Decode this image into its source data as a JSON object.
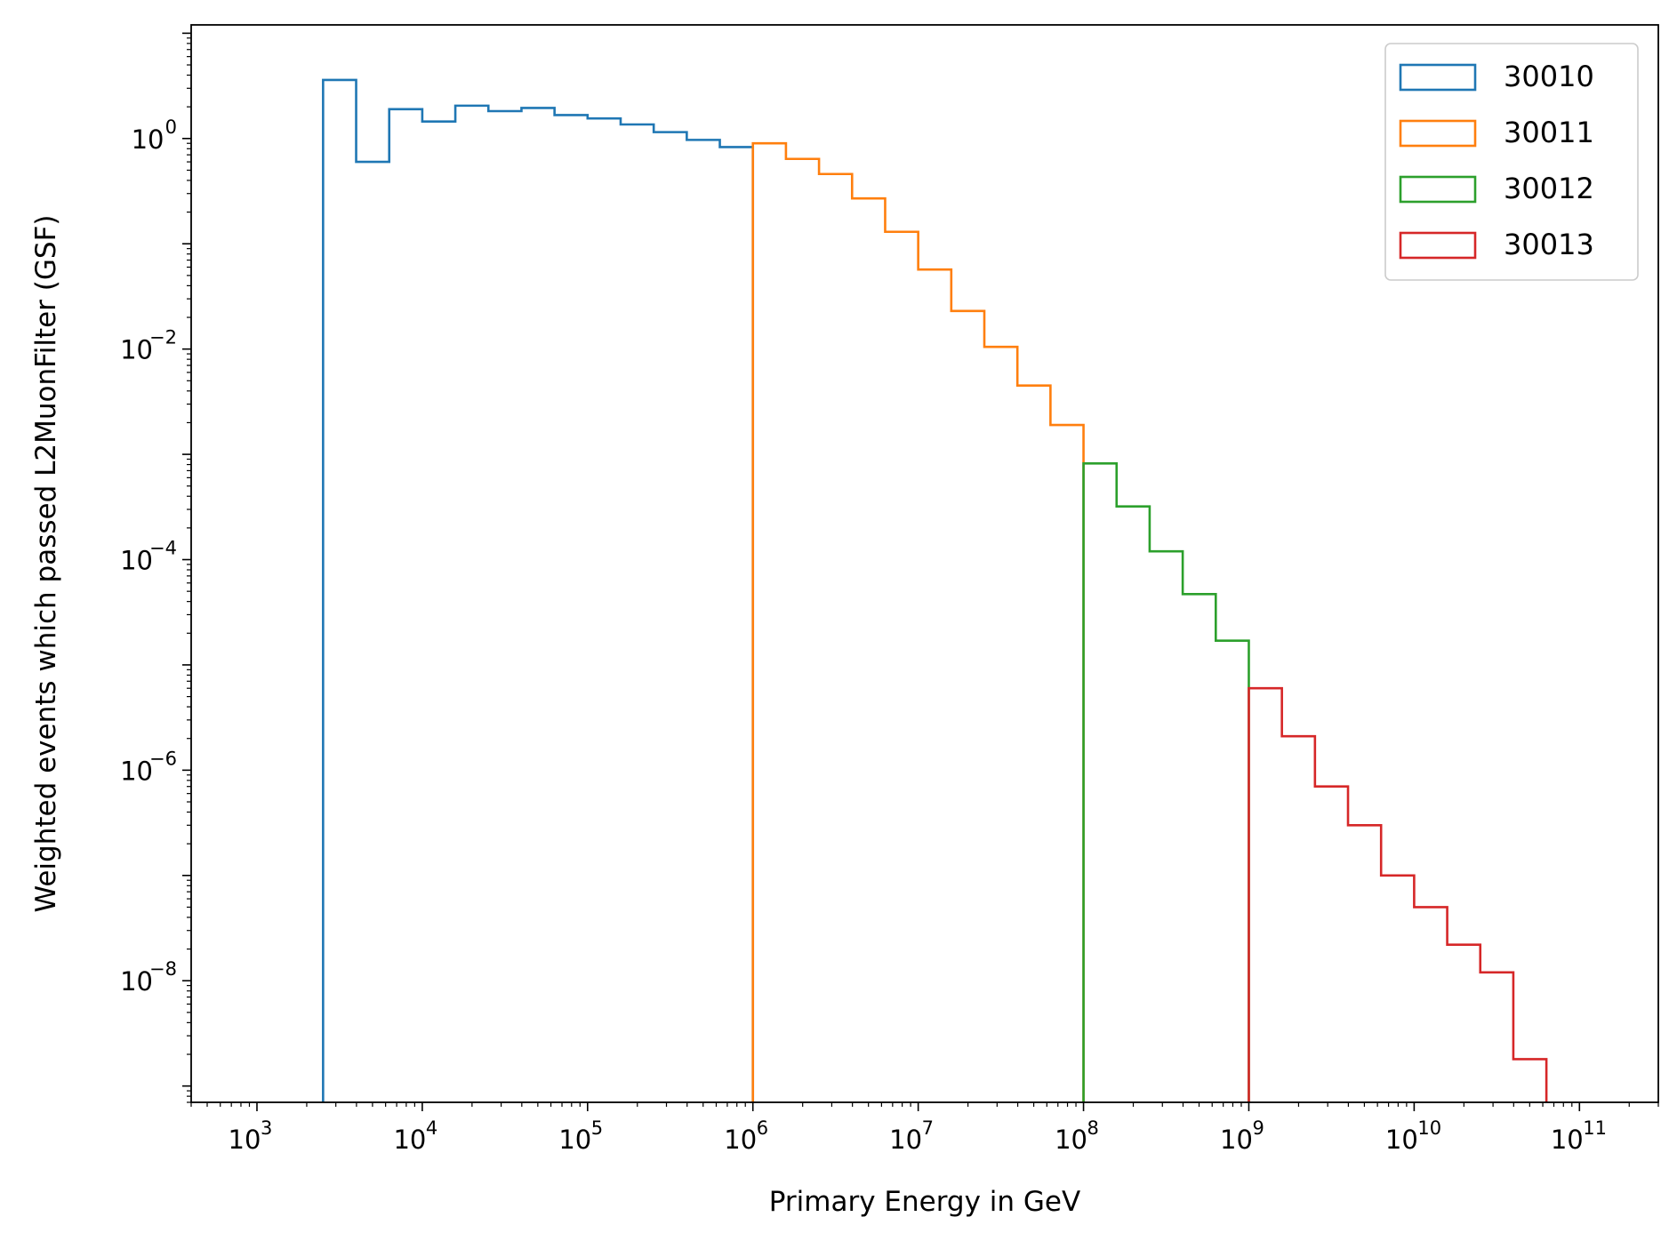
{
  "chart_data": {
    "type": "histogram-step",
    "xlabel": "Primary Energy in GeV",
    "ylabel": "Weighted events which passed L2MuonFilter (GSF)",
    "xscale": "log",
    "yscale": "log",
    "xlim": [
      400,
      300000000000.0
    ],
    "ylim": [
      7e-10,
      12
    ],
    "x_ticks": [
      {
        "base": "10",
        "exp": "3",
        "value": 1000.0
      },
      {
        "base": "10",
        "exp": "4",
        "value": 10000.0
      },
      {
        "base": "10",
        "exp": "5",
        "value": 100000.0
      },
      {
        "base": "10",
        "exp": "6",
        "value": 1000000.0
      },
      {
        "base": "10",
        "exp": "7",
        "value": 10000000.0
      },
      {
        "base": "10",
        "exp": "8",
        "value": 100000000.0
      },
      {
        "base": "10",
        "exp": "9",
        "value": 1000000000.0
      },
      {
        "base": "10",
        "exp": "10",
        "value": 10000000000.0
      },
      {
        "base": "10",
        "exp": "11",
        "value": 100000000000.0
      }
    ],
    "y_ticks": [
      {
        "base": "10",
        "exp": "0",
        "value": 1
      },
      {
        "base": "10",
        "exp": "−2",
        "value": 0.01
      },
      {
        "base": "10",
        "exp": "−4",
        "value": 0.0001
      },
      {
        "base": "10",
        "exp": "−6",
        "value": 1e-06
      },
      {
        "base": "10",
        "exp": "−8",
        "value": 1e-08
      }
    ],
    "legend_position": "upper-right",
    "series": [
      {
        "name": "30010",
        "color": "#1f77b4",
        "edges": [
          2512,
          3981,
          6310,
          10000,
          15849,
          25119,
          39811,
          63096,
          100000,
          158489,
          251189,
          398107,
          630957,
          1000000
        ],
        "values": [
          3.6,
          0.6,
          1.9,
          1.45,
          2.05,
          1.82,
          1.95,
          1.67,
          1.55,
          1.36,
          1.15,
          0.97,
          0.83
        ]
      },
      {
        "name": "30011",
        "color": "#ff7f0e",
        "edges": [
          1000000.0,
          1585000.0,
          2512000.0,
          3981000.0,
          6310000.0,
          10000000.0,
          15850000.0,
          25120000.0,
          39810000.0,
          63100000.0,
          100000000.0
        ],
        "values": [
          0.9,
          0.64,
          0.46,
          0.27,
          0.13,
          0.057,
          0.023,
          0.0105,
          0.0045,
          0.0019
        ]
      },
      {
        "name": "30012",
        "color": "#2ca02c",
        "edges": [
          100000000.0,
          158500000.0,
          251200000.0,
          398100000.0,
          631000000.0,
          1000000000.0
        ],
        "values": [
          0.00082,
          0.00032,
          0.00012,
          4.7e-05,
          1.7e-05
        ]
      },
      {
        "name": "30013",
        "color": "#d62728",
        "edges": [
          1000000000.0,
          1585000000.0,
          2512000000.0,
          3981000000.0,
          6310000000.0,
          10000000000.0,
          15850000000.0,
          25120000000.0,
          39810000000.0,
          63100000000.0
        ],
        "values": [
          6e-06,
          2.1e-06,
          7e-07,
          3e-07,
          1e-07,
          5e-08,
          2.2e-08,
          1.2e-08,
          1.8e-09
        ]
      }
    ]
  }
}
